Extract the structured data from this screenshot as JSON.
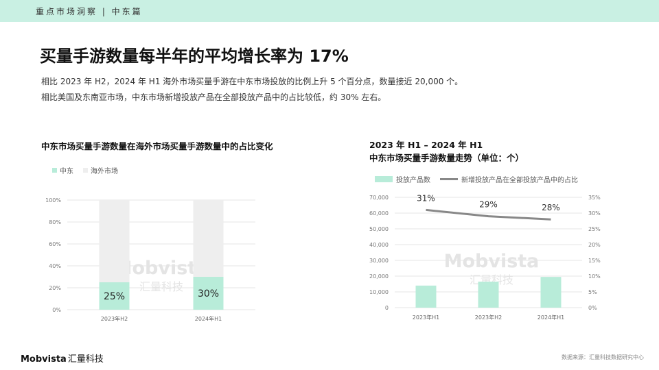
{
  "header": {
    "breadcrumb": "重点市场洞察 | 中东篇"
  },
  "title": "买量手游数量每半年的平均增长率为 17%",
  "description": [
    "相比 2023 年 H2，2024 年 H1 海外市场买量手游在中东市场投放的比例上升 5 个百分点，数量接近 20,000 个。",
    "相比美国及东南亚市场，中东市场新增投放产品在全部投放产品中的占比较低，约 30% 左右。"
  ],
  "watermark": {
    "brand": "Mobvista",
    "brand_cn": "汇量科技"
  },
  "colors": {
    "accent": "#b8ecd9",
    "bg_bar": "#eeeeee",
    "line": "#888888",
    "topbar": "#c9f0e3"
  },
  "chart_data": [
    {
      "type": "bar",
      "stacked": true,
      "title": "中东市场买量手游数量在海外市场买量手游数量中的占比变化",
      "categories": [
        "2023年H2",
        "2024年H1"
      ],
      "series": [
        {
          "name": "中东",
          "values": [
            25,
            30
          ],
          "labels": [
            "25%",
            "30%"
          ]
        },
        {
          "name": "海外市场",
          "values": [
            75,
            70
          ]
        }
      ],
      "y_ticks": [
        "0%",
        "20%",
        "40%",
        "60%",
        "80%",
        "100%"
      ],
      "ylim": [
        0,
        100
      ],
      "legend_position": "top-left",
      "grid": true
    },
    {
      "type": "bar",
      "title": "2023 年 H1 – 2024 年 H1",
      "subtitle": "中东市场买量手游数量走势（单位：个）",
      "categories": [
        "2023年H1",
        "2023年H2",
        "2024年H1"
      ],
      "series": [
        {
          "name": "投放产品数",
          "type": "bar",
          "axis": "left",
          "values": [
            14000,
            16500,
            19500
          ]
        },
        {
          "name": "新增投放产品在全部投放产品中的占比",
          "type": "line",
          "axis": "right",
          "values": [
            31,
            29,
            28
          ],
          "labels": [
            "31%",
            "29%",
            "28%"
          ]
        }
      ],
      "y_left_ticks": [
        "0",
        "10,000",
        "20,000",
        "30,000",
        "40,000",
        "50,000",
        "60,000",
        "70,000"
      ],
      "y_left_lim": [
        0,
        70000
      ],
      "y_right_ticks": [
        "0%",
        "5%",
        "10%",
        "15%",
        "20%",
        "25%",
        "30%",
        "35%"
      ],
      "y_right_lim": [
        0,
        35
      ],
      "legend_position": "top",
      "grid": true
    }
  ],
  "footer": {
    "logo": "Mobvista",
    "logo_cn": "汇量科技",
    "source": "数据来源：汇量科技数据研究中心"
  }
}
